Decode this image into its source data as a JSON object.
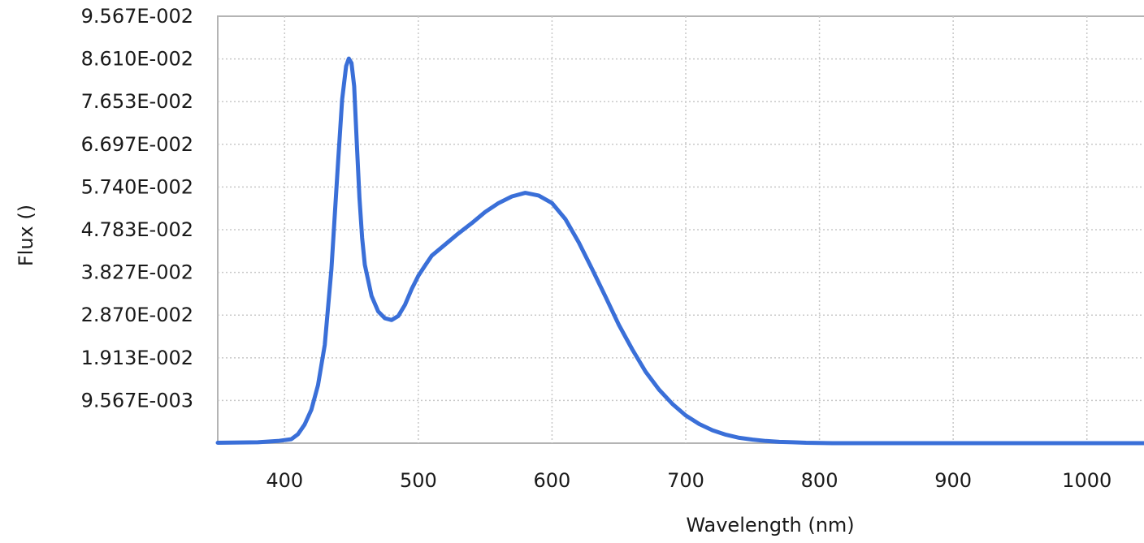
{
  "chart_data": {
    "type": "line",
    "title": "",
    "xlabel": "Wavelength (nm)",
    "ylabel": "Flux ()",
    "xlim": [
      350,
      1050
    ],
    "ylim": [
      0,
      0.09567
    ],
    "x_ticks": [
      400,
      500,
      600,
      700,
      800,
      900,
      1000
    ],
    "x_tick_labels": [
      "400",
      "500",
      "600",
      "700",
      "800",
      "900",
      "1000"
    ],
    "y_ticks": [
      0.009567,
      0.01913,
      0.0287,
      0.03827,
      0.04783,
      0.0574,
      0.06697,
      0.07653,
      0.0861,
      0.09567
    ],
    "y_tick_labels": [
      "9.567E-003",
      "1.913E-002",
      "2.870E-002",
      "3.827E-002",
      "4.783E-002",
      "5.740E-002",
      "6.697E-002",
      "7.653E-002",
      "8.610E-002",
      "9.567E-002"
    ],
    "grid": true,
    "legend": "none",
    "series": [
      {
        "color": "#3a6fd8",
        "x": [
          350,
          380,
          395,
          405,
          410,
          415,
          420,
          425,
          430,
          435,
          440,
          443,
          446,
          448,
          450,
          452,
          454,
          456,
          458,
          460,
          465,
          470,
          475,
          480,
          485,
          490,
          495,
          500,
          505,
          510,
          520,
          530,
          540,
          550,
          560,
          570,
          580,
          590,
          600,
          610,
          620,
          630,
          640,
          650,
          660,
          670,
          680,
          690,
          700,
          710,
          720,
          730,
          740,
          750,
          760,
          770,
          780,
          790,
          800,
          810,
          820,
          850,
          900,
          950,
          1000,
          1050
        ],
        "y": [
          0.0001,
          0.0002,
          0.0005,
          0.0009,
          0.002,
          0.0042,
          0.0075,
          0.013,
          0.022,
          0.039,
          0.063,
          0.077,
          0.0845,
          0.0862,
          0.0852,
          0.08,
          0.067,
          0.055,
          0.046,
          0.04,
          0.033,
          0.0295,
          0.028,
          0.0276,
          0.0285,
          0.031,
          0.0345,
          0.0375,
          0.0398,
          0.042,
          0.0445,
          0.047,
          0.0493,
          0.0518,
          0.0538,
          0.0553,
          0.0561,
          0.0555,
          0.0538,
          0.0502,
          0.045,
          0.039,
          0.0328,
          0.0265,
          0.021,
          0.016,
          0.012,
          0.0088,
          0.0062,
          0.0043,
          0.0029,
          0.0019,
          0.0012,
          0.0008,
          0.0005,
          0.0003,
          0.0002,
          0.0001,
          5e-05,
          0.0,
          0.0,
          0.0,
          0.0,
          0.0,
          0.0,
          0.0
        ]
      }
    ]
  }
}
